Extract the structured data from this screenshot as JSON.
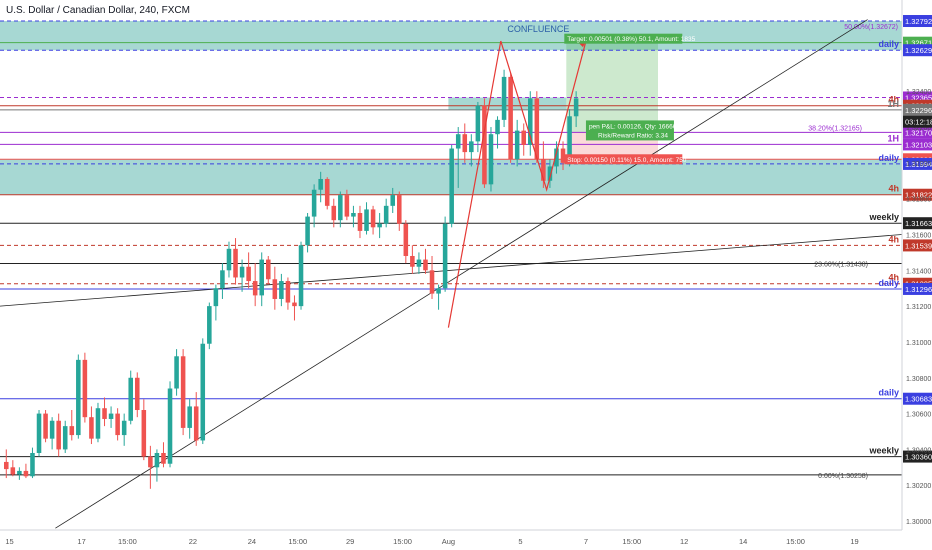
{
  "header": {
    "title": "U.S. Dollar / Canadian Dollar, 240, FXCM"
  },
  "zone_text": {
    "confluence": "CONFLUENCE",
    "target": "Target: 0.00501 (0.38%) 50.1, Amount: 1835",
    "pnl": "pen P&L: 0.00126, Qty: 166666",
    "rr": "Risk/Reward Ratio: 3.34",
    "stop": "Stop: 0.00150 (0.11%) 15.0, Amount: 750",
    "fib_50": "50.00%(1.32672)",
    "fib_38": "38.20%(1.32165)",
    "fib_23": "23.60%(1.31438)",
    "fib_0": "0.00%(1.30258)"
  },
  "colors": {
    "bull": "#26a69a",
    "bear": "#ef5350",
    "zone": "#5fb8ae",
    "daily": "#3a3fe0",
    "fourh": "#c0392b",
    "onehour": "#9b2dd0",
    "line": "#222222",
    "target": "#4caf50",
    "stop": "#ef5350"
  },
  "chart_data": {
    "type": "candlestick",
    "symbol": "USDCAD",
    "timeframe": "240",
    "ylim": [
      1.2995,
      1.3282
    ],
    "y_ticks": [
      "1.32400",
      "1.32200",
      "1.32000",
      "1.31800",
      "1.31600",
      "1.31400",
      "1.31200",
      "1.31000",
      "1.30800",
      "1.30600",
      "1.30400",
      "1.30200",
      "1.30000"
    ],
    "x_ticks": [
      {
        "label": "15",
        "i": 1
      },
      {
        "label": "17",
        "i": 12
      },
      {
        "label": "15:00",
        "i": 19
      },
      {
        "label": "22",
        "i": 29
      },
      {
        "label": "24",
        "i": 38
      },
      {
        "label": "15:00",
        "i": 45
      },
      {
        "label": "29",
        "i": 53
      },
      {
        "label": "15:00",
        "i": 61
      },
      {
        "label": "Aug",
        "i": 68
      },
      {
        "label": "5",
        "i": 79
      },
      {
        "label": "7",
        "i": 89
      },
      {
        "label": "15:00",
        "i": 96
      },
      {
        "label": "12",
        "i": 104
      },
      {
        "label": "14",
        "i": 113
      },
      {
        "label": "15:00",
        "i": 121
      },
      {
        "label": "19",
        "i": 130
      }
    ],
    "candles": [
      [
        1.3033,
        1.304,
        1.3024,
        1.3029
      ],
      [
        1.303,
        1.3034,
        1.3025,
        1.3026
      ],
      [
        1.3026,
        1.303,
        1.3023,
        1.3028
      ],
      [
        1.3028,
        1.3032,
        1.3024,
        1.3025
      ],
      [
        1.3025,
        1.3041,
        1.3024,
        1.3038
      ],
      [
        1.3038,
        1.3062,
        1.3036,
        1.306
      ],
      [
        1.306,
        1.3062,
        1.3044,
        1.3046
      ],
      [
        1.3046,
        1.3058,
        1.304,
        1.3056
      ],
      [
        1.3056,
        1.306,
        1.3036,
        1.304
      ],
      [
        1.304,
        1.3056,
        1.3038,
        1.3053
      ],
      [
        1.3053,
        1.3062,
        1.3045,
        1.3048
      ],
      [
        1.3048,
        1.3093,
        1.3046,
        1.309
      ],
      [
        1.309,
        1.3094,
        1.3055,
        1.3058
      ],
      [
        1.3058,
        1.3064,
        1.3043,
        1.3046
      ],
      [
        1.3046,
        1.3066,
        1.3044,
        1.3063
      ],
      [
        1.3063,
        1.3069,
        1.3053,
        1.3057
      ],
      [
        1.3057,
        1.3064,
        1.3052,
        1.306
      ],
      [
        1.306,
        1.3063,
        1.3045,
        1.3048
      ],
      [
        1.3048,
        1.306,
        1.3042,
        1.3056
      ],
      [
        1.3056,
        1.3084,
        1.3054,
        1.308
      ],
      [
        1.308,
        1.3083,
        1.3058,
        1.3062
      ],
      [
        1.3062,
        1.3068,
        1.3034,
        1.3036
      ],
      [
        1.3036,
        1.3042,
        1.3018,
        1.303
      ],
      [
        1.303,
        1.304,
        1.3022,
        1.3038
      ],
      [
        1.3038,
        1.3044,
        1.303,
        1.3032
      ],
      [
        1.3032,
        1.3078,
        1.303,
        1.3074
      ],
      [
        1.3074,
        1.3096,
        1.307,
        1.3092
      ],
      [
        1.3092,
        1.3096,
        1.3048,
        1.3052
      ],
      [
        1.3052,
        1.3068,
        1.3046,
        1.3064
      ],
      [
        1.3064,
        1.3072,
        1.3042,
        1.3045
      ],
      [
        1.3045,
        1.3102,
        1.3043,
        1.3099
      ],
      [
        1.3099,
        1.3122,
        1.3096,
        1.312
      ],
      [
        1.312,
        1.3132,
        1.3112,
        1.313
      ],
      [
        1.313,
        1.3144,
        1.3124,
        1.314
      ],
      [
        1.314,
        1.3156,
        1.3136,
        1.3152
      ],
      [
        1.3152,
        1.3158,
        1.3132,
        1.3136
      ],
      [
        1.3136,
        1.3146,
        1.3128,
        1.3142
      ],
      [
        1.3142,
        1.315,
        1.313,
        1.3134
      ],
      [
        1.3134,
        1.3144,
        1.312,
        1.3126
      ],
      [
        1.3126,
        1.315,
        1.312,
        1.3146
      ],
      [
        1.3146,
        1.3148,
        1.3132,
        1.3135
      ],
      [
        1.3135,
        1.3142,
        1.3118,
        1.3124
      ],
      [
        1.3124,
        1.3138,
        1.312,
        1.3134
      ],
      [
        1.3134,
        1.3136,
        1.3118,
        1.3122
      ],
      [
        1.3122,
        1.3126,
        1.3112,
        1.312
      ],
      [
        1.312,
        1.3156,
        1.3118,
        1.3154
      ],
      [
        1.3154,
        1.3172,
        1.315,
        1.317
      ],
      [
        1.317,
        1.3188,
        1.3164,
        1.3185
      ],
      [
        1.3185,
        1.3195,
        1.3178,
        1.3191
      ],
      [
        1.3191,
        1.3192,
        1.3174,
        1.3176
      ],
      [
        1.3176,
        1.318,
        1.3164,
        1.3168
      ],
      [
        1.3168,
        1.3184,
        1.3164,
        1.3182
      ],
      [
        1.3182,
        1.3185,
        1.3168,
        1.317
      ],
      [
        1.317,
        1.3176,
        1.3164,
        1.3172
      ],
      [
        1.3172,
        1.3176,
        1.3158,
        1.3162
      ],
      [
        1.3162,
        1.3178,
        1.316,
        1.3174
      ],
      [
        1.3174,
        1.3176,
        1.316,
        1.3164
      ],
      [
        1.3164,
        1.3172,
        1.3158,
        1.3166
      ],
      [
        1.3166,
        1.318,
        1.3164,
        1.3176
      ],
      [
        1.3176,
        1.3186,
        1.3172,
        1.3182
      ],
      [
        1.3182,
        1.3184,
        1.3162,
        1.3166
      ],
      [
        1.3166,
        1.3168,
        1.3144,
        1.3148
      ],
      [
        1.3148,
        1.3154,
        1.3138,
        1.3142
      ],
      [
        1.3142,
        1.315,
        1.3138,
        1.3146
      ],
      [
        1.3146,
        1.3152,
        1.3138,
        1.314
      ],
      [
        1.314,
        1.3148,
        1.3124,
        1.3127
      ],
      [
        1.3127,
        1.3132,
        1.3118,
        1.313
      ],
      [
        1.313,
        1.317,
        1.3128,
        1.3166
      ],
      [
        1.3166,
        1.321,
        1.3164,
        1.3208
      ],
      [
        1.3208,
        1.322,
        1.3186,
        1.3216
      ],
      [
        1.3216,
        1.3222,
        1.32,
        1.3206
      ],
      [
        1.3206,
        1.3216,
        1.3198,
        1.3212
      ],
      [
        1.3212,
        1.3234,
        1.3206,
        1.3232
      ],
      [
        1.3232,
        1.3236,
        1.3186,
        1.3188
      ],
      [
        1.3188,
        1.322,
        1.3184,
        1.3216
      ],
      [
        1.3216,
        1.3226,
        1.3208,
        1.3224
      ],
      [
        1.3224,
        1.3252,
        1.322,
        1.3248
      ],
      [
        1.3248,
        1.325,
        1.32,
        1.3202
      ],
      [
        1.3202,
        1.3224,
        1.3198,
        1.3218
      ],
      [
        1.3218,
        1.3222,
        1.3204,
        1.321
      ],
      [
        1.321,
        1.324,
        1.3204,
        1.3236
      ],
      [
        1.3236,
        1.324,
        1.32,
        1.3202
      ],
      [
        1.3202,
        1.3212,
        1.3186,
        1.319
      ],
      [
        1.319,
        1.3202,
        1.3186,
        1.3198
      ],
      [
        1.3198,
        1.3212,
        1.3194,
        1.3208
      ],
      [
        1.3208,
        1.3212,
        1.3196,
        1.32
      ],
      [
        1.32,
        1.323,
        1.3198,
        1.3226
      ],
      [
        1.3226,
        1.324,
        1.322,
        1.3236
      ]
    ],
    "levels": [
      {
        "price": 1.32792,
        "label": "1.32792",
        "tag": "",
        "color": "#3a3fe0",
        "dash": true
      },
      {
        "price": 1.32671,
        "label": "1.32671",
        "tag": "",
        "color": "#4caf50",
        "dash": false
      },
      {
        "price": 1.32629,
        "label": "1.32629",
        "tag": "daily",
        "color": "#3a3fe0",
        "dash": true
      },
      {
        "price": 1.32365,
        "label": "1.32365",
        "tag": "",
        "color": "#9b2dd0",
        "dash": true
      },
      {
        "price": 1.32319,
        "label": "1.32319",
        "tag": "4h",
        "color": "#c0392b",
        "dash": false
      },
      {
        "price": 1.32296,
        "label": "1.32296",
        "tag": "1H",
        "color": "#777777",
        "dash": false
      },
      {
        "price": 1.3217,
        "label": "1.32170",
        "tag": "",
        "color": "#9b2dd0",
        "dash": false
      },
      {
        "price": 1.32103,
        "label": "1.32103",
        "tag": "1H",
        "color": "#9b2dd0",
        "dash": false
      },
      {
        "price": 1.3202,
        "label": "1.32020",
        "tag": "",
        "color": "#ef5350",
        "dash": false
      },
      {
        "price": 1.31994,
        "label": "1.31994",
        "tag": "daily",
        "color": "#3a3fe0",
        "dash": true
      },
      {
        "price": 1.31822,
        "label": "1.31822",
        "tag": "4h",
        "color": "#c0392b",
        "dash": false
      },
      {
        "price": 1.31663,
        "label": "1.31663",
        "tag": "weekly",
        "color": "#222222",
        "dash": false
      },
      {
        "price": 1.31539,
        "label": "1.31539",
        "tag": "4h",
        "color": "#c0392b",
        "dash": true
      },
      {
        "price": 1.31438,
        "label": "",
        "tag": "",
        "color": "#222222",
        "dash": false
      },
      {
        "price": 1.31325,
        "label": "1.31325",
        "tag": "4h",
        "color": "#c0392b",
        "dash": true
      },
      {
        "price": 1.31296,
        "label": "1.31296",
        "tag": "daily",
        "color": "#3a3fe0",
        "dash": false
      },
      {
        "price": 1.30683,
        "label": "1.30683",
        "tag": "daily",
        "color": "#3a3fe0",
        "dash": false
      },
      {
        "price": 1.3036,
        "label": "1.30360",
        "tag": "weekly",
        "color": "#222222",
        "dash": false
      },
      {
        "price": 1.30258,
        "label": "",
        "tag": "",
        "color": "#222222",
        "dash": false
      }
    ],
    "countdown": "03:12:18"
  }
}
